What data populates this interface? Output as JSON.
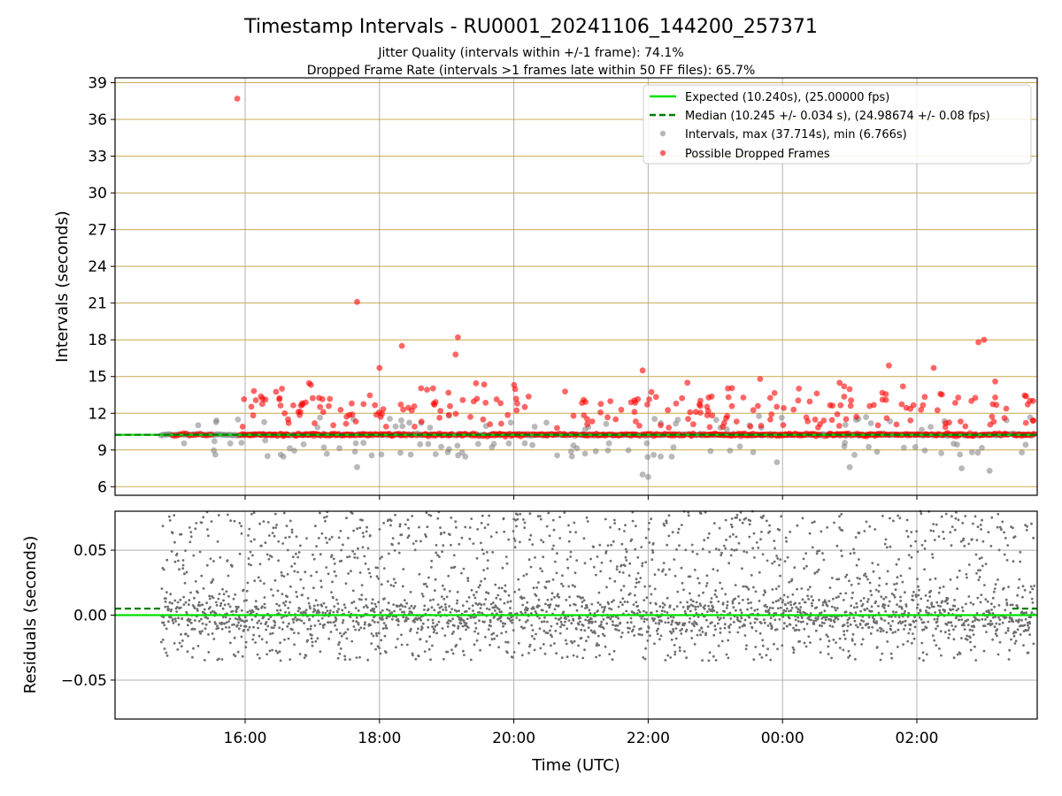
{
  "chart_data": {
    "type": "scatter",
    "title": "Timestamp Intervals - RU0001_20241106_144200_257371",
    "subtitles": [
      "Jitter Quality (intervals within +/-1 frame): 74.1%",
      "Dropped Frame Rate (intervals >1 frames late within 50 FF files): 65.7%"
    ],
    "xlabel": "Time (UTC)",
    "x_ticks": [
      "16:00",
      "18:00",
      "20:00",
      "22:00",
      "00:00",
      "02:00"
    ],
    "top_panel": {
      "ylabel": "Intervals (seconds)",
      "ylim": [
        5.3,
        39.4
      ],
      "y_ticks": [
        6,
        9,
        12,
        15,
        18,
        21,
        24,
        27,
        30,
        33,
        36,
        39
      ],
      "grid": "y (gold) and x (gray)",
      "legend_position": "top-right",
      "legend": [
        "Expected (10.240s), (25.00000 fps)",
        "Median (10.245 +/- 0.034 s), (24.98674 +/- 0.08 fps)",
        "Intervals, max (37.714s), min (6.766s)",
        "Possible Dropped Frames"
      ],
      "expected_interval": 10.24,
      "median_interval": 10.245,
      "dropped_frames": [
        {
          "x": "15:53",
          "y": 37.7
        },
        {
          "x": "17:40",
          "y": 21.1
        },
        {
          "x": "18:00",
          "y": 15.7
        },
        {
          "x": "18:20",
          "y": 17.5
        },
        {
          "x": "19:10",
          "y": 18.2
        },
        {
          "x": "19:08",
          "y": 16.8
        },
        {
          "x": "21:55",
          "y": 15.5
        },
        {
          "x": "22:35",
          "y": 14.5
        },
        {
          "x": "23:40",
          "y": 14.8
        },
        {
          "x": "00:55",
          "y": 14.2
        },
        {
          "x": "01:35",
          "y": 15.9
        },
        {
          "x": "02:15",
          "y": 15.7
        },
        {
          "x": "02:55",
          "y": 17.8
        },
        {
          "x": "03:00",
          "y": 18.0
        },
        {
          "x": "03:10",
          "y": 14.6
        }
      ],
      "interval_outliers": [
        {
          "x": "17:40",
          "y": 7.6
        },
        {
          "x": "16:20",
          "y": 8.5
        },
        {
          "x": "21:55",
          "y": 7.0
        },
        {
          "x": "22:00",
          "y": 6.8
        },
        {
          "x": "23:55",
          "y": 8.0
        },
        {
          "x": "01:00",
          "y": 7.6
        },
        {
          "x": "02:40",
          "y": 7.5
        },
        {
          "x": "03:05",
          "y": 7.3
        }
      ]
    },
    "bottom_panel": {
      "ylabel": "Residuals (seconds)",
      "ylim": [
        -0.08,
        0.08
      ],
      "y_ticks": [
        "0.05",
        "0.00",
        "−0.05"
      ],
      "expected_residual": 0.0,
      "median_residual": 0.005
    },
    "colors": {
      "expected": "#00e000",
      "median": "#007f00",
      "intervals": "#808080",
      "dropped": "#ff0000",
      "hgrid_top": "#c8a850",
      "grid": "#b0b0b0"
    }
  }
}
